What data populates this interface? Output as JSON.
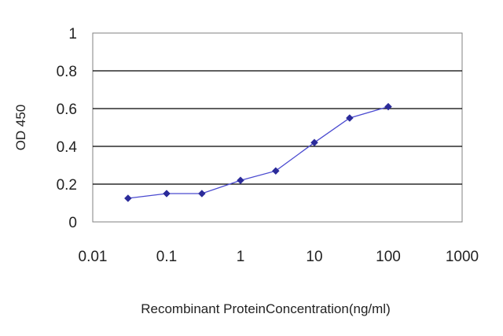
{
  "chart_data": {
    "type": "line",
    "title": "",
    "xlabel": "Recombinant ProteinConcentration(ng/ml)",
    "ylabel": "OD 450",
    "x_scale": "log",
    "xlim": [
      0.01,
      1000
    ],
    "ylim": [
      0,
      1
    ],
    "x_ticks": [
      "0.01",
      "0.1",
      "1",
      "10",
      "100",
      "1000"
    ],
    "y_ticks": [
      "0",
      "0.2",
      "0.4",
      "0.6",
      "0.8",
      "1"
    ],
    "grid": "horizontal",
    "legend": "none",
    "series": [
      {
        "color": "#2b2b9a",
        "marker": "diamond",
        "x": [
          0.03,
          0.1,
          0.3,
          1,
          3,
          10,
          30,
          100
        ],
        "y": [
          0.125,
          0.15,
          0.15,
          0.22,
          0.27,
          0.42,
          0.55,
          0.61
        ]
      }
    ]
  }
}
